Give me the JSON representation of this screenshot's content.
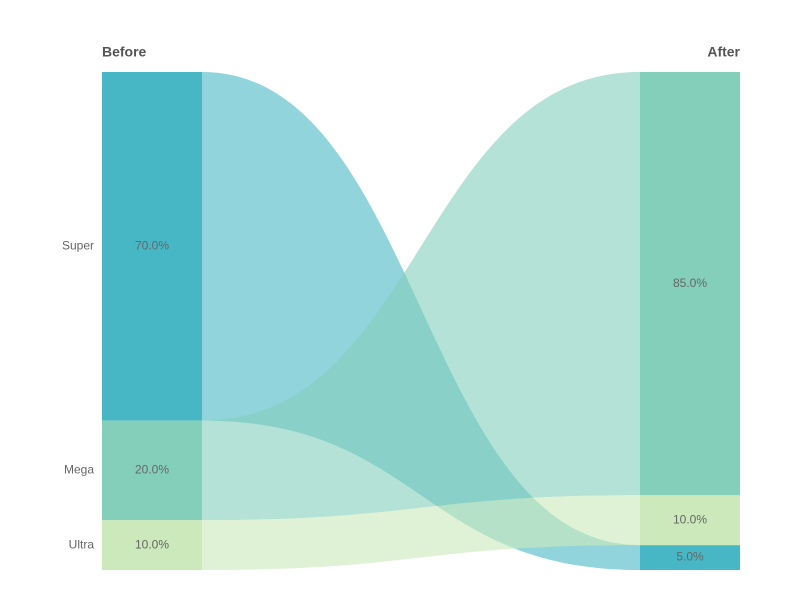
{
  "chart_data": {
    "type": "parallel-sets",
    "categories": [
      "Super",
      "Mega",
      "Ultra"
    ],
    "colors": [
      "#47b7c5",
      "#84cfba",
      "#cbe9ba"
    ],
    "series": [
      {
        "name": "Before",
        "values": [
          70,
          20,
          10
        ],
        "value_labels": [
          "70.0%",
          "20.0%",
          "10.0%"
        ]
      },
      {
        "name": "After",
        "values": [
          5,
          85,
          10
        ],
        "value_labels": [
          "5.0%",
          "85.0%",
          "10.0%"
        ]
      }
    ]
  }
}
